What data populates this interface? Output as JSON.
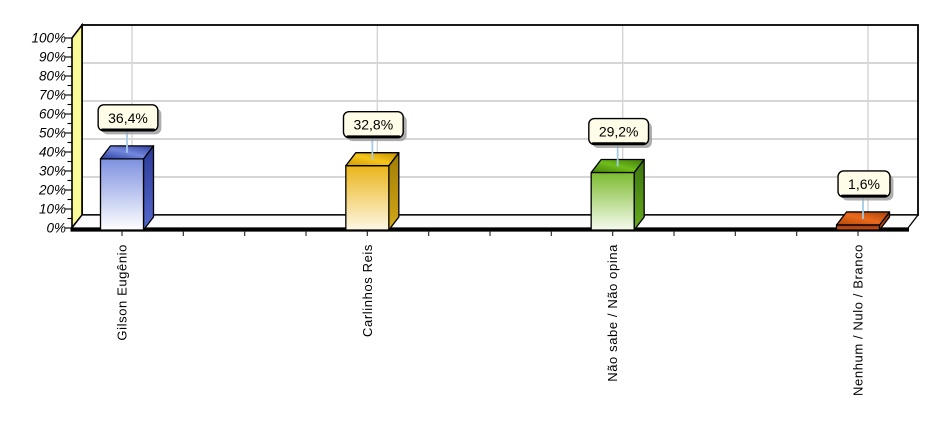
{
  "chart_data": {
    "type": "bar",
    "style": "3d-column",
    "title": "",
    "xlabel": "",
    "ylabel": "",
    "legend": "none",
    "categories": [
      "Gilson Eugênio",
      "Carlinhos Reis",
      "Não sabe / Não opina",
      "Nenhum / Nulo / Branco"
    ],
    "values": [
      36.4,
      32.8,
      29.2,
      1.6
    ],
    "value_labels": [
      "36,4%",
      "32,8%",
      "29,2%",
      "1,6%"
    ],
    "ylim": [
      0,
      100
    ],
    "y_tick_step": 10,
    "y_ticks": [
      "0%",
      "10%",
      "20%",
      "30%",
      "40%",
      "50%",
      "60%",
      "70%",
      "80%",
      "90%",
      "100%"
    ],
    "grid": {
      "visible": true,
      "h_step_pct": 20,
      "v_at_categories": true
    },
    "bar_colors": [
      {
        "name": "blue",
        "top": [
          "#2c3d9c",
          "#7488de",
          "#2c3d9c"
        ],
        "side": [
          "#2a3a9a",
          "#5568cc"
        ],
        "front": [
          "#7e91e0",
          "#ffffff"
        ]
      },
      {
        "name": "gold",
        "top": [
          "#cf9b04",
          "#f6c51b",
          "#c28f00"
        ],
        "side": [
          "#a07c04",
          "#d2a818"
        ],
        "front": [
          "#eab519",
          "#fdf7e4"
        ]
      },
      {
        "name": "green",
        "top": [
          "#47800c",
          "#6fbd1a",
          "#3f7a0c"
        ],
        "side": [
          "#3a750e",
          "#66aa1e"
        ],
        "front": [
          "#7cbb2f",
          "#f6fbee"
        ]
      },
      {
        "name": "orange",
        "top": [
          "#b04708",
          "#eb6a1c",
          "#a84208"
        ],
        "side": [
          "#8c3408",
          "#c65012"
        ],
        "front": [
          "#993a0e",
          "#c85018"
        ]
      }
    ],
    "colors": {
      "page_bg": "#ffffff",
      "plot_bg": "#ffffff",
      "wall": "#fafa98",
      "outline": "#000000",
      "gridline": "#d6d6d6",
      "callout_bg": "#fffce8",
      "callout_border": "#000000",
      "callout_shadow": "#9a9a9a",
      "connector": "#a4cbe8",
      "tick": "#333333",
      "axis_text": "#000000"
    }
  }
}
